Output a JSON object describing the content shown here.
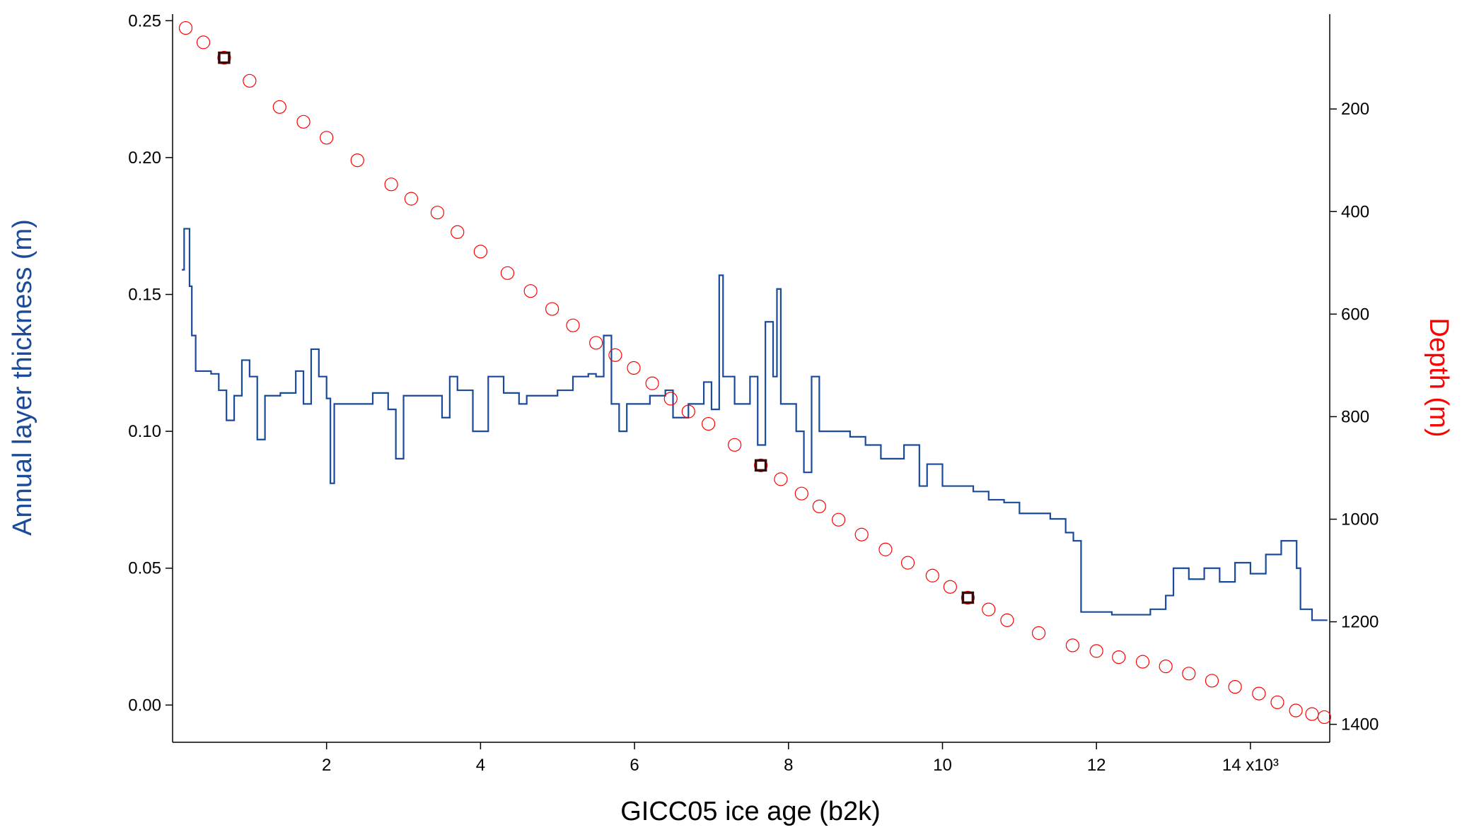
{
  "chart_data": {
    "type": "step",
    "x_label": "GICC05 ice age (b2k)",
    "y_label": "Annual layer thickness (m)",
    "y2_label": "Depth (m)",
    "xlim": [
      0,
      15.03
    ],
    "ylim": [
      -0.0136,
      0.2524
    ],
    "y2lim": [
      1435,
      15
    ],
    "xticks": [
      2,
      4,
      6,
      8,
      10,
      12,
      {
        "value": 14,
        "label": "14 x10³"
      }
    ],
    "yticks": [
      {
        "value": 0,
        "label": "0.00"
      },
      0.05,
      {
        "value": 0.1,
        "label": "0.10"
      },
      0.15,
      {
        "value": 0.2,
        "label": "0.20"
      },
      0.25
    ],
    "y2ticks": [
      200,
      400,
      600,
      800,
      1000,
      1200,
      1400
    ],
    "y_label_color": "#1a4a9a",
    "y2_label_color": "#ff0000",
    "series": [
      {
        "type": "step",
        "color": "#1a4a9a",
        "x": [
          0.12,
          0.15,
          0.22,
          0.25,
          0.3,
          0.5,
          0.6,
          0.7,
          0.8,
          0.9,
          1.0,
          1.1,
          1.2,
          1.4,
          1.6,
          1.7,
          1.8,
          1.9,
          2.0,
          2.05,
          2.1,
          2.4,
          2.6,
          2.8,
          2.9,
          3.0,
          3.4,
          3.5,
          3.6,
          3.7,
          3.9,
          4.1,
          4.3,
          4.5,
          4.6,
          5.0,
          5.2,
          5.4,
          5.5,
          5.6,
          5.7,
          5.8,
          5.9,
          6.2,
          6.4,
          6.5,
          6.7,
          6.9,
          7.0,
          7.1,
          7.15,
          7.3,
          7.5,
          7.6,
          7.7,
          7.8,
          7.85,
          7.9,
          8.1,
          8.2,
          8.3,
          8.4,
          8.6,
          8.8,
          9.0,
          9.2,
          9.5,
          9.7,
          9.8,
          10.0,
          10.2,
          10.4,
          10.6,
          10.8,
          11.0,
          11.2,
          11.4,
          11.6,
          11.7,
          11.8,
          12.0,
          12.2,
          12.4,
          12.7,
          12.9,
          13.0,
          13.2,
          13.4,
          13.6,
          13.8,
          14.0,
          14.2,
          14.4,
          14.5,
          14.6,
          14.65,
          14.8,
          15.0
        ],
        "values": [
          0.159,
          0.174,
          0.153,
          0.135,
          0.122,
          0.121,
          0.115,
          0.104,
          0.113,
          0.126,
          0.12,
          0.097,
          0.113,
          0.114,
          0.122,
          0.11,
          0.13,
          0.12,
          0.112,
          0.081,
          0.11,
          0.11,
          0.114,
          0.108,
          0.09,
          0.113,
          0.113,
          0.105,
          0.12,
          0.115,
          0.1,
          0.12,
          0.114,
          0.11,
          0.113,
          0.115,
          0.12,
          0.121,
          0.12,
          0.135,
          0.11,
          0.1,
          0.11,
          0.113,
          0.115,
          0.105,
          0.11,
          0.118,
          0.108,
          0.157,
          0.12,
          0.11,
          0.12,
          0.095,
          0.14,
          0.12,
          0.152,
          0.11,
          0.1,
          0.085,
          0.12,
          0.1,
          0.1,
          0.098,
          0.095,
          0.09,
          0.095,
          0.08,
          0.088,
          0.08,
          0.08,
          0.078,
          0.075,
          0.074,
          0.07,
          0.07,
          0.068,
          0.063,
          0.06,
          0.034,
          0.034,
          0.033,
          0.033,
          0.035,
          0.04,
          0.05,
          0.046,
          0.05,
          0.045,
          0.052,
          0.048,
          0.055,
          0.06,
          0.06,
          0.05,
          0.035,
          0.031,
          0.031
        ]
      },
      {
        "type": "scatter",
        "axis": "y2",
        "color": "#ff0000",
        "marker": "circle",
        "x": [
          0.17,
          0.4,
          0.67,
          1.0,
          1.39,
          1.7,
          2.0,
          2.4,
          2.84,
          3.1,
          3.44,
          3.7,
          4.0,
          4.35,
          4.65,
          4.93,
          5.2,
          5.5,
          5.75,
          5.99,
          6.23,
          6.47,
          6.7,
          6.96,
          7.3,
          7.64,
          7.9,
          8.17,
          8.4,
          8.65,
          8.95,
          9.26,
          9.55,
          9.87,
          10.1,
          10.33,
          10.6,
          10.84,
          11.25,
          11.69,
          12.0,
          12.29,
          12.6,
          12.9,
          13.2,
          13.5,
          13.8,
          14.11,
          14.35,
          14.59,
          14.8,
          14.96
        ],
        "values": [
          42,
          70,
          100,
          145,
          196,
          225,
          256,
          300,
          347,
          375,
          402,
          440,
          478,
          520,
          555,
          590,
          622,
          656,
          680,
          705,
          735,
          765,
          790,
          814,
          855,
          895,
          922,
          950,
          975,
          1001,
          1030,
          1059,
          1085,
          1110,
          1132,
          1153,
          1176,
          1197,
          1222,
          1246,
          1257,
          1269,
          1278,
          1287,
          1301,
          1315,
          1327,
          1340,
          1357,
          1373,
          1380,
          1386
        ]
      },
      {
        "type": "scatter",
        "axis": "y2",
        "color": "#3a0a0a",
        "marker": "square",
        "x": [
          0.67,
          7.64,
          10.33
        ],
        "values": [
          100,
          895,
          1153
        ]
      }
    ]
  }
}
